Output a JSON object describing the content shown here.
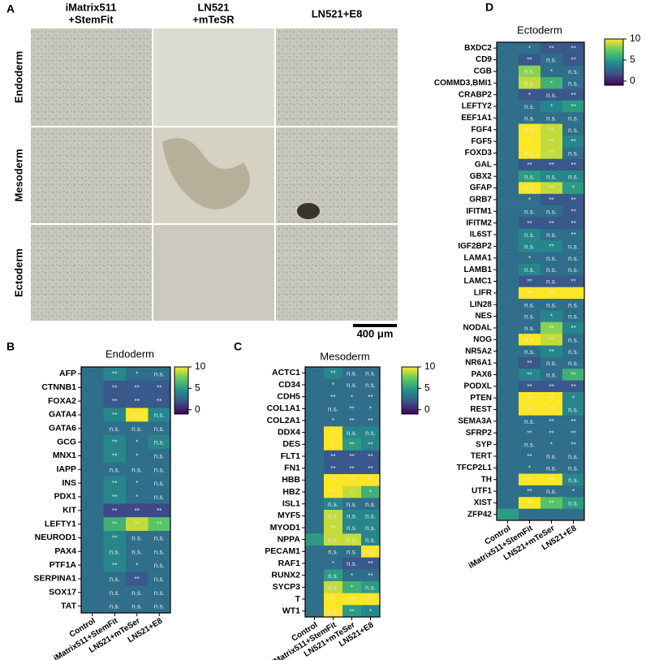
{
  "panel_a": {
    "label": "A",
    "columns": [
      [
        "iMatrix511",
        "+StemFit"
      ],
      [
        "LN521",
        "+mTeSR"
      ],
      [
        "LN521+E8"
      ]
    ],
    "rows": [
      "Endoderm",
      "Mesoderm",
      "Ectoderm"
    ],
    "scale_bar": "400 μm"
  },
  "chart_data": [
    {
      "type": "heatmap",
      "panel": "B",
      "title": "Endoderm",
      "x": [
        "Control",
        "iMatrix511+StemFit",
        "LN521+mTeSer",
        "LN521+E8"
      ],
      "y": [
        "AFP",
        "CTNNB1",
        "FOXA2",
        "GATA4",
        "GATA6",
        "GCG",
        "MNX1",
        "IAPP",
        "INS",
        "PDX1",
        "KIT",
        "LEFTY1",
        "NEUROD1",
        "PAX4",
        "PTF1A",
        "SERPINA1",
        "SOX17",
        "TAT"
      ],
      "values": [
        [
          3,
          4,
          3,
          3
        ],
        [
          3,
          2,
          2,
          2
        ],
        [
          3,
          2,
          2,
          2
        ],
        [
          3,
          4,
          10,
          4
        ],
        [
          3,
          3,
          3,
          3
        ],
        [
          3,
          4,
          3,
          4
        ],
        [
          3,
          4,
          3,
          3
        ],
        [
          3,
          3,
          3,
          3
        ],
        [
          3,
          4,
          3,
          3
        ],
        [
          3,
          4,
          3,
          3
        ],
        [
          3,
          1.5,
          1.5,
          1.5
        ],
        [
          3,
          6,
          9,
          7
        ],
        [
          3,
          4,
          3,
          3
        ],
        [
          3,
          4,
          3,
          3
        ],
        [
          3,
          4,
          3,
          3
        ],
        [
          3,
          3,
          2,
          3
        ],
        [
          3,
          3,
          3,
          3
        ],
        [
          3,
          3,
          3,
          3
        ]
      ],
      "annotations": [
        [
          null,
          "**",
          "*",
          "n.s."
        ],
        [
          null,
          "**",
          "**",
          "**"
        ],
        [
          null,
          "**",
          "**",
          "**"
        ],
        [
          null,
          "**",
          "n.s.",
          "n.s."
        ],
        [
          null,
          "n.s.",
          "n.s.",
          "n.s."
        ],
        [
          null,
          "**",
          "*",
          "n.s."
        ],
        [
          null,
          "**",
          "*",
          "n.s."
        ],
        [
          null,
          "n.s.",
          "n.s.",
          "n.s."
        ],
        [
          null,
          "**",
          "*",
          "n.s."
        ],
        [
          null,
          "**",
          "*",
          "n.s."
        ],
        [
          null,
          "**",
          "**",
          "**"
        ],
        [
          null,
          "**",
          "**",
          "**"
        ],
        [
          null,
          "**",
          "n.s.",
          "n.s."
        ],
        [
          null,
          "n.s.",
          "n.s.",
          "n.s."
        ],
        [
          null,
          "**",
          "*",
          "n.s."
        ],
        [
          null,
          "n.s.",
          "**",
          "n.s."
        ],
        [
          null,
          "n.s.",
          "n.s.",
          "n.s."
        ],
        [
          null,
          "n.s.",
          "n.s.",
          "n.s."
        ]
      ],
      "colormap": "viridis",
      "zlim": [
        -1,
        10
      ],
      "zticks": [
        0,
        5,
        10
      ]
    },
    {
      "type": "heatmap",
      "panel": "C",
      "title": "Mesoderm",
      "x": [
        "Control",
        "iMatrix511+StemFit",
        "LN521+mTeSer",
        "LN521+E8"
      ],
      "y": [
        "ACTC1",
        "CD34",
        "CDH5",
        "COL1A1",
        "COL2A1",
        "DDX4",
        "DES",
        "FLT1",
        "FN1",
        "HBB",
        "HBZ",
        "ISL1",
        "MYF5",
        "MYOD1",
        "NPPA",
        "PECAM1",
        "RAF1",
        "RUNX2",
        "SYCP3",
        "T",
        "WT1"
      ],
      "values": [
        [
          3,
          4,
          3,
          3
        ],
        [
          3,
          3,
          3,
          3
        ],
        [
          3,
          3,
          3,
          3
        ],
        [
          3,
          3,
          3,
          3
        ],
        [
          3,
          3,
          3,
          3
        ],
        [
          3,
          10,
          4,
          4
        ],
        [
          3,
          10,
          5,
          4
        ],
        [
          3,
          2,
          2,
          2
        ],
        [
          3,
          2,
          2,
          2
        ],
        [
          3,
          10,
          10,
          10
        ],
        [
          3,
          10,
          9,
          6
        ],
        [
          3,
          4,
          3,
          3
        ],
        [
          3,
          9,
          4,
          4
        ],
        [
          3,
          9,
          4,
          4
        ],
        [
          5,
          9,
          9,
          4
        ],
        [
          3,
          3,
          3,
          10
        ],
        [
          3,
          3,
          2,
          2
        ],
        [
          3,
          5,
          3,
          3
        ],
        [
          3,
          9,
          6,
          5
        ],
        [
          3,
          10,
          10,
          10
        ],
        [
          3,
          10,
          5,
          4
        ]
      ],
      "annotations": [
        [
          null,
          "**",
          "n.s.",
          "n.s."
        ],
        [
          null,
          "*",
          "n.s.",
          "n.s."
        ],
        [
          null,
          "**",
          "*",
          "**"
        ],
        [
          null,
          "n.s.",
          "**",
          "*"
        ],
        [
          null,
          "*",
          "**",
          "**"
        ],
        [
          null,
          "**",
          "n.s.",
          "n.s."
        ],
        [
          null,
          "**",
          "**",
          "**"
        ],
        [
          null,
          "**",
          "**",
          "**"
        ],
        [
          null,
          "**",
          "**",
          "**"
        ],
        [
          null,
          "**",
          "**",
          "**"
        ],
        [
          null,
          "**",
          "*",
          "*"
        ],
        [
          null,
          "n.s.",
          "n.s.",
          "n.s."
        ],
        [
          null,
          "n.s.",
          "n.s.",
          "n.s."
        ],
        [
          null,
          "**",
          "n.s.",
          "n.s."
        ],
        [
          null,
          "n.s.",
          "n.s.",
          "n.s."
        ],
        [
          null,
          "n.s.",
          "n.s.",
          "n.s."
        ],
        [
          null,
          "*",
          "n.s.",
          "**"
        ],
        [
          null,
          "n.s.",
          "*",
          "**"
        ],
        [
          null,
          "n.s.",
          "*",
          "n.s."
        ],
        [
          null,
          "**",
          "**",
          "**"
        ],
        [
          null,
          "n.s.",
          "**",
          "*"
        ]
      ],
      "colormap": "viridis",
      "zlim": [
        -1,
        10
      ],
      "zticks": [
        0,
        5,
        10
      ]
    },
    {
      "type": "heatmap",
      "panel": "D",
      "title": "Ectoderm",
      "x": [
        "Control",
        "iMatrix511+StemFit",
        "LN521+mTeSer",
        "LN521+E8"
      ],
      "y": [
        "BXDC2",
        "CD9",
        "CGB",
        "COMMD3,BMI1",
        "CRABP2",
        "LEFTY2",
        "EEF1A1",
        "FGF4",
        "FGF5",
        "FOXD3",
        "GAL",
        "GBX2",
        "GFAP",
        "GRB7",
        "IFITM1",
        "IFITM2",
        "IL6ST",
        "IGF2BP2",
        "LAMA1",
        "LAMB1",
        "LAMC1",
        "LIFR",
        "LIN28",
        "NES",
        "NODAL",
        "NOG",
        "NR5A2",
        "NR6A1",
        "PAX6",
        "PODXL",
        "PTEN",
        "REST",
        "SEMA3A",
        "SFRP2",
        "SYP",
        "TERT",
        "TFCP2L1",
        "TH",
        "UTF1",
        "XIST",
        "ZFP42"
      ],
      "values": [
        [
          3,
          3,
          2,
          2
        ],
        [
          3,
          2,
          3,
          2
        ],
        [
          3,
          8,
          3,
          3
        ],
        [
          3,
          9,
          6,
          3
        ],
        [
          3,
          2,
          2,
          2
        ],
        [
          3,
          3,
          4,
          5
        ],
        [
          3,
          3,
          3,
          3
        ],
        [
          3,
          10,
          9,
          3
        ],
        [
          3,
          10,
          9,
          4
        ],
        [
          3,
          10,
          9,
          3
        ],
        [
          3,
          2,
          2,
          2
        ],
        [
          3,
          5,
          4,
          4
        ],
        [
          3,
          10,
          9,
          5
        ],
        [
          3,
          3,
          2,
          2
        ],
        [
          3,
          3,
          3,
          2
        ],
        [
          3,
          2,
          2,
          2
        ],
        [
          3,
          4,
          3,
          3
        ],
        [
          3,
          4,
          4,
          3
        ],
        [
          3,
          3,
          3,
          3
        ],
        [
          3,
          4,
          3,
          3
        ],
        [
          3,
          2,
          2,
          2
        ],
        [
          3,
          10,
          10,
          10
        ],
        [
          3,
          3,
          3,
          3
        ],
        [
          3,
          3,
          4,
          3
        ],
        [
          3,
          3,
          8,
          4
        ],
        [
          3,
          10,
          9,
          3
        ],
        [
          3,
          3,
          4,
          3
        ],
        [
          3,
          2,
          3,
          3
        ],
        [
          3,
          4,
          3,
          6
        ],
        [
          3,
          2,
          2,
          2
        ],
        [
          3,
          10,
          10,
          4
        ],
        [
          3,
          10,
          10,
          4
        ],
        [
          3,
          3,
          3,
          3
        ],
        [
          3,
          3,
          3,
          3
        ],
        [
          3,
          3,
          3,
          3
        ],
        [
          3,
          3,
          3,
          3
        ],
        [
          3,
          3,
          3,
          3
        ],
        [
          3,
          10,
          10,
          4
        ],
        [
          3,
          3,
          3,
          3
        ],
        [
          3,
          10,
          7,
          5
        ],
        [
          5,
          3,
          3,
          3
        ]
      ],
      "annotations": [
        [
          null,
          "*",
          "**",
          "**"
        ],
        [
          null,
          "**",
          "n.s.",
          "**"
        ],
        [
          null,
          "n.s.",
          "*",
          "n.s."
        ],
        [
          null,
          "n.s.",
          "*",
          "n.s."
        ],
        [
          null,
          "*",
          "n.s.",
          "**"
        ],
        [
          null,
          "n.s.",
          "*",
          "**"
        ],
        [
          null,
          "n.s.",
          "n.s.",
          "n.s."
        ],
        [
          null,
          "n.s.",
          "**",
          "n.s."
        ],
        [
          null,
          "*",
          "**",
          "**"
        ],
        [
          null,
          "n.s.",
          "**",
          "n.s."
        ],
        [
          null,
          "**",
          "**",
          "**"
        ],
        [
          null,
          "n.s.",
          "n.s.",
          "n.s."
        ],
        [
          null,
          "n.s.",
          "**",
          "*"
        ],
        [
          null,
          "*",
          "**",
          "**"
        ],
        [
          null,
          "n.s.",
          "n.s.",
          "**"
        ],
        [
          null,
          "**",
          "**",
          "**"
        ],
        [
          null,
          "n.s.",
          "n.s.",
          "**"
        ],
        [
          null,
          "n.s.",
          "**",
          "n.s."
        ],
        [
          null,
          "*",
          "n.s.",
          "n.s."
        ],
        [
          null,
          "n.s.",
          "n.s.",
          "n.s."
        ],
        [
          null,
          "**",
          "n.s.",
          "**"
        ],
        [
          null,
          "**",
          "**",
          "*"
        ],
        [
          null,
          "n.s.",
          "n.s.",
          "n.s."
        ],
        [
          null,
          "n.s.",
          "*",
          "n.s."
        ],
        [
          null,
          "n.s.",
          "**",
          "**"
        ],
        [
          null,
          "n.s.",
          "**",
          "n.s."
        ],
        [
          null,
          "n.s.",
          "**",
          "n.s."
        ],
        [
          null,
          "**",
          "n.s.",
          "n.s."
        ],
        [
          null,
          "**",
          "n.s.",
          "**"
        ],
        [
          null,
          "**",
          "**",
          "**"
        ],
        [
          null,
          "**",
          "**",
          "*"
        ],
        [
          null,
          "**",
          "**",
          "n.s."
        ],
        [
          null,
          "n.s.",
          "**",
          "**"
        ],
        [
          null,
          "**",
          "**",
          "**"
        ],
        [
          null,
          "n.s.",
          "*",
          "**"
        ],
        [
          null,
          "**",
          "n.s.",
          "n.s."
        ],
        [
          null,
          "*",
          "n.s.",
          "n.s."
        ],
        [
          null,
          "**",
          "**",
          "n.s."
        ],
        [
          null,
          "**",
          "n.s.",
          "*"
        ],
        [
          null,
          "**",
          "**",
          "n.s."
        ],
        [
          null,
          null,
          null,
          null
        ]
      ],
      "colormap": "viridis",
      "zlim": [
        -1,
        10
      ],
      "zticks": [
        0,
        5,
        10
      ]
    }
  ]
}
